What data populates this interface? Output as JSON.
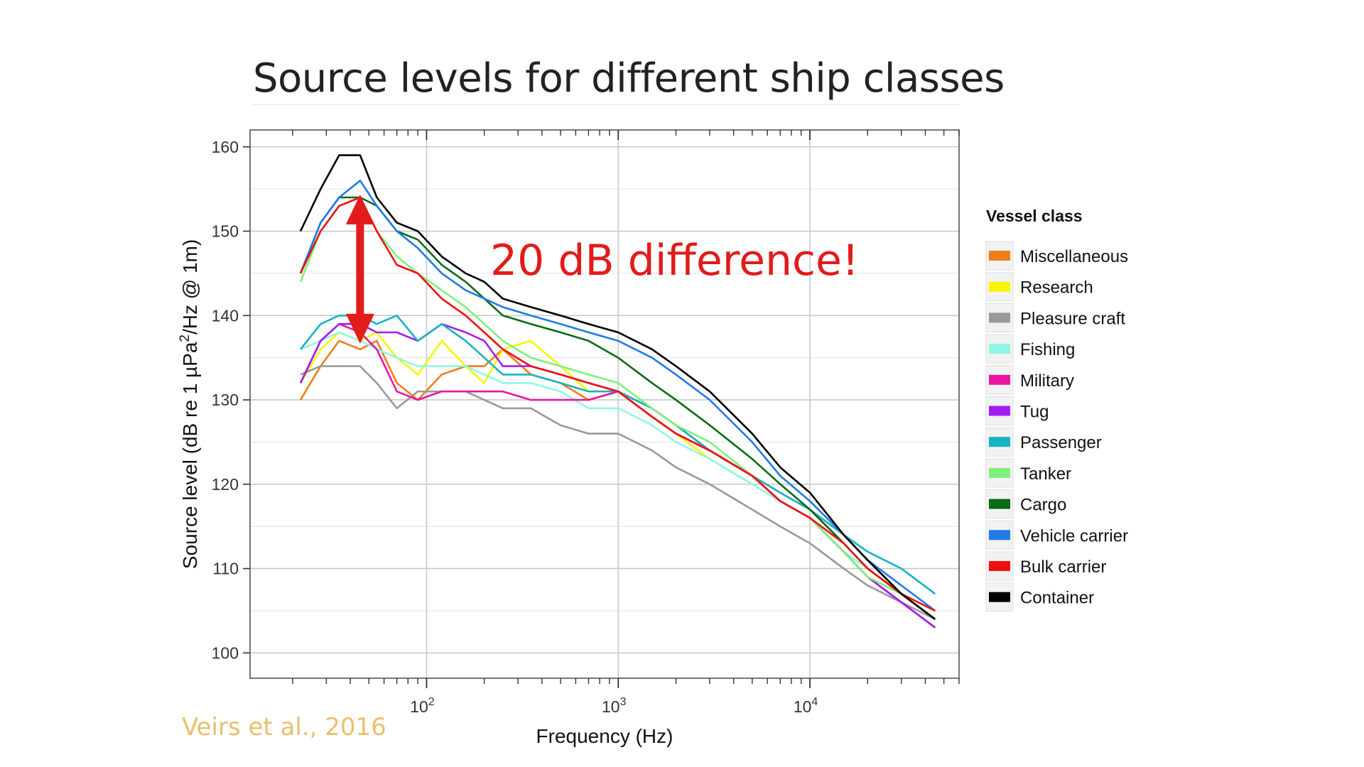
{
  "slide": {
    "title": "Source levels for different ship classes",
    "citation": "Veirs et al., 2016"
  },
  "chart_data": {
    "type": "line",
    "title": "",
    "xlabel": "Frequency (Hz)",
    "ylabel_main": "Source level (dB re 1 µPa",
    "ylabel_sup": "2",
    "ylabel_tail": "/Hz @ 1m)",
    "x_scale": "log",
    "xlim": [
      12,
      60000
    ],
    "ylim": [
      97,
      162
    ],
    "yticks": [
      100,
      110,
      120,
      130,
      140,
      150,
      160
    ],
    "xticks": [
      {
        "value": 100,
        "base": "10",
        "exp": "2"
      },
      {
        "value": 1000,
        "base": "10",
        "exp": "3"
      },
      {
        "value": 10000,
        "base": "10",
        "exp": "4"
      }
    ],
    "grid": true,
    "legend": {
      "title": "Vessel class",
      "placement": "right"
    },
    "annotation": {
      "text": "20 dB difference!",
      "arrow_x": 45,
      "arrow_y_from": 154,
      "arrow_y_to": 137,
      "color": "#e21b1b"
    },
    "series": [
      {
        "name": "Miscellaneous",
        "color": "#f07d1a",
        "x": [
          22,
          28,
          35,
          45,
          55,
          70,
          90,
          120,
          160,
          200,
          250,
          350,
          500,
          700,
          1000,
          1500,
          2000,
          3000,
          5000,
          7000,
          10000,
          15000,
          20000,
          30000,
          45000
        ],
        "y": [
          130,
          134,
          137,
          136,
          137,
          132,
          130,
          133,
          134,
          134,
          136,
          133,
          132,
          130,
          131,
          128,
          126,
          124,
          121,
          119,
          117,
          113,
          110,
          107,
          104
        ]
      },
      {
        "name": "Research",
        "color": "#f8f500",
        "x": [
          22,
          28,
          35,
          45,
          55,
          70,
          90,
          120,
          160,
          200,
          250,
          350,
          500,
          700,
          1000,
          1500,
          2000,
          3000,
          5000,
          7000,
          10000,
          15000,
          20000,
          30000,
          45000
        ],
        "y": [
          132,
          136,
          138,
          137,
          138,
          135,
          133,
          137,
          134,
          132,
          136,
          137,
          134,
          131,
          131,
          128,
          126,
          123,
          120,
          118,
          116,
          112,
          109,
          107,
          105
        ]
      },
      {
        "name": "Pleasure craft",
        "color": "#999999",
        "x": [
          22,
          28,
          35,
          45,
          55,
          70,
          90,
          120,
          160,
          200,
          250,
          350,
          500,
          700,
          1000,
          1500,
          2000,
          3000,
          5000,
          7000,
          10000,
          15000,
          20000,
          30000,
          45000
        ],
        "y": [
          133,
          134,
          134,
          134,
          132,
          129,
          131,
          131,
          131,
          130,
          129,
          129,
          127,
          126,
          126,
          124,
          122,
          120,
          117,
          115,
          113,
          110,
          108,
          106,
          104
        ]
      },
      {
        "name": "Fishing",
        "color": "#8ff7e6",
        "x": [
          22,
          28,
          35,
          45,
          55,
          70,
          90,
          120,
          160,
          200,
          250,
          350,
          500,
          700,
          1000,
          1500,
          2000,
          3000,
          5000,
          7000,
          10000,
          15000,
          20000,
          30000,
          45000
        ],
        "y": [
          136,
          137,
          138,
          137,
          136,
          135,
          134,
          134,
          134,
          133,
          132,
          132,
          131,
          129,
          129,
          127,
          125,
          123,
          120,
          118,
          116,
          112,
          110,
          107,
          105
        ]
      },
      {
        "name": "Military",
        "color": "#e8179e",
        "x": [
          22,
          28,
          35,
          45,
          55,
          70,
          90,
          120,
          160,
          200,
          250,
          350,
          500,
          700,
          1000,
          1500,
          2000,
          3000,
          5000,
          7000,
          10000,
          15000,
          20000,
          30000,
          45000
        ],
        "y": [
          132,
          137,
          139,
          138,
          136,
          131,
          130,
          131,
          131,
          131,
          131,
          130,
          130,
          130,
          131,
          129,
          127,
          124,
          121,
          118,
          116,
          112,
          109,
          106,
          103
        ]
      },
      {
        "name": "Tug",
        "color": "#a21ef0",
        "x": [
          22,
          28,
          35,
          45,
          55,
          70,
          90,
          120,
          160,
          200,
          250,
          350,
          500,
          700,
          1000,
          1500,
          2000,
          3000,
          5000,
          7000,
          10000,
          15000,
          20000,
          30000,
          45000
        ],
        "y": [
          132,
          137,
          139,
          139,
          138,
          138,
          137,
          139,
          138,
          137,
          134,
          134,
          133,
          132,
          131,
          128,
          126,
          124,
          121,
          118,
          116,
          112,
          109,
          106,
          103
        ]
      },
      {
        "name": "Passenger",
        "color": "#17b3c0",
        "x": [
          22,
          28,
          35,
          45,
          55,
          70,
          90,
          120,
          160,
          200,
          250,
          350,
          500,
          700,
          1000,
          1500,
          2000,
          3000,
          5000,
          7000,
          10000,
          15000,
          20000,
          30000,
          45000
        ],
        "y": [
          136,
          139,
          140,
          140,
          139,
          140,
          137,
          139,
          137,
          135,
          133,
          133,
          132,
          131,
          131,
          129,
          127,
          124,
          121,
          119,
          117,
          114,
          112,
          110,
          107
        ]
      },
      {
        "name": "Tanker",
        "color": "#7ff07a",
        "x": [
          22,
          28,
          35,
          45,
          55,
          70,
          90,
          120,
          160,
          200,
          250,
          350,
          500,
          700,
          1000,
          1500,
          2000,
          3000,
          5000,
          7000,
          10000,
          15000,
          20000,
          30000,
          45000
        ],
        "y": [
          144,
          150,
          153,
          154,
          150,
          147,
          145,
          143,
          141,
          139,
          137,
          135,
          134,
          133,
          132,
          129,
          127,
          125,
          121,
          118,
          116,
          112,
          109,
          107,
          104
        ]
      },
      {
        "name": "Cargo",
        "color": "#0b6b16",
        "x": [
          22,
          28,
          35,
          45,
          55,
          70,
          90,
          120,
          160,
          200,
          250,
          350,
          500,
          700,
          1000,
          1500,
          2000,
          3000,
          5000,
          7000,
          10000,
          15000,
          20000,
          30000,
          45000
        ],
        "y": [
          145,
          151,
          154,
          154,
          153,
          150,
          149,
          146,
          144,
          142,
          140,
          139,
          138,
          137,
          135,
          132,
          130,
          127,
          123,
          120,
          117,
          113,
          110,
          107,
          104
        ]
      },
      {
        "name": "Vehicle carrier",
        "color": "#1f7be8",
        "x": [
          22,
          28,
          35,
          45,
          55,
          70,
          90,
          120,
          160,
          200,
          250,
          350,
          500,
          700,
          1000,
          1500,
          2000,
          3000,
          5000,
          7000,
          10000,
          15000,
          20000,
          30000,
          45000
        ],
        "y": [
          145,
          151,
          154,
          156,
          153,
          150,
          148,
          145,
          143,
          142,
          141,
          140,
          139,
          138,
          137,
          135,
          133,
          130,
          125,
          121,
          118,
          114,
          111,
          108,
          105
        ]
      },
      {
        "name": "Bulk carrier",
        "color": "#f01010",
        "x": [
          22,
          28,
          35,
          45,
          55,
          70,
          90,
          120,
          160,
          200,
          250,
          350,
          500,
          700,
          1000,
          1500,
          2000,
          3000,
          5000,
          7000,
          10000,
          15000,
          20000,
          30000,
          45000
        ],
        "y": [
          145,
          150,
          153,
          154,
          150,
          146,
          145,
          142,
          140,
          138,
          136,
          134,
          133,
          132,
          131,
          128,
          126,
          124,
          121,
          118,
          116,
          113,
          110,
          107,
          105
        ]
      },
      {
        "name": "Container",
        "color": "#000000",
        "x": [
          22,
          28,
          35,
          45,
          55,
          70,
          90,
          120,
          160,
          200,
          250,
          350,
          500,
          700,
          1000,
          1500,
          2000,
          3000,
          5000,
          7000,
          10000,
          15000,
          20000,
          30000,
          45000
        ],
        "y": [
          150,
          155,
          159,
          159,
          154,
          151,
          150,
          147,
          145,
          144,
          142,
          141,
          140,
          139,
          138,
          136,
          134,
          131,
          126,
          122,
          119,
          114,
          111,
          107,
          104
        ]
      }
    ]
  }
}
